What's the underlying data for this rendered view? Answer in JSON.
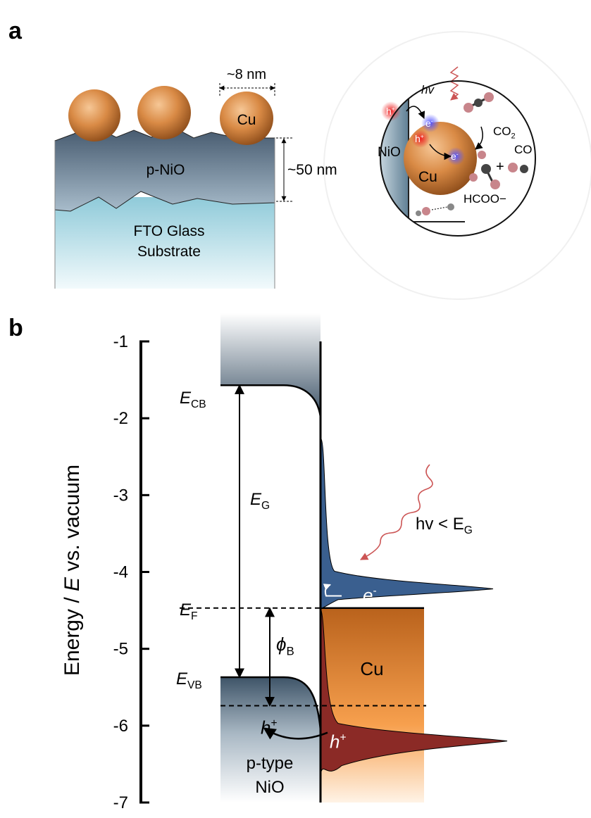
{
  "panel_a": {
    "label": "a",
    "particle_size": "~8 nm",
    "particle": "Cu",
    "film_thickness": "~50 nm",
    "film": "p-NiO",
    "substrate": [
      "FTO Glass",
      "Substrate"
    ],
    "inset": {
      "photon": "hv",
      "hole_1": {
        "base": "h",
        "sup": "+"
      },
      "electron_1": {
        "base": "e",
        "sup": "-"
      },
      "hole_2": {
        "base": "h",
        "sup": "+"
      },
      "electron_2": {
        "base": "e",
        "sup": "-"
      },
      "co2": {
        "base": "CO",
        "sub": "2"
      },
      "support": "NiO",
      "particle": "Cu",
      "co": "CO",
      "plus": "+",
      "formate": "HCOO−"
    }
  },
  "panel_b": {
    "label": "b",
    "y_axis_label": {
      "before": "Energy / ",
      "italic": "E",
      "after": " vs. vacuum"
    },
    "ylim": [
      -7,
      -1
    ],
    "yticks": [
      -1,
      -2,
      -3,
      -4,
      -5,
      -6,
      -7
    ],
    "levels": {
      "E_CB": -1.57,
      "E_F": -4.47,
      "E_VB": -5.37,
      "E_VB_interface": -5.74,
      "electron_peak": -4.22,
      "hole_peak": -6.2
    },
    "labels": {
      "E_CB": {
        "base": "E",
        "sub": "CB"
      },
      "E_G": {
        "base": "E",
        "sub": "G"
      },
      "E_F": {
        "base": "E",
        "sub": "F"
      },
      "E_VB": {
        "base": "E",
        "sub": "VB"
      },
      "barrier": {
        "base": "ϕ",
        "sub": "B"
      },
      "metal": "Cu",
      "hole_left": {
        "base": "h",
        "sup": "+"
      },
      "hole_right": {
        "base": "h",
        "sup": "+"
      },
      "electron": {
        "base": "e",
        "sup": "-"
      },
      "photon_condition": {
        "base": "hv < E",
        "sub": "G"
      },
      "semiconductor": [
        "p-type",
        "NiO"
      ]
    }
  }
}
